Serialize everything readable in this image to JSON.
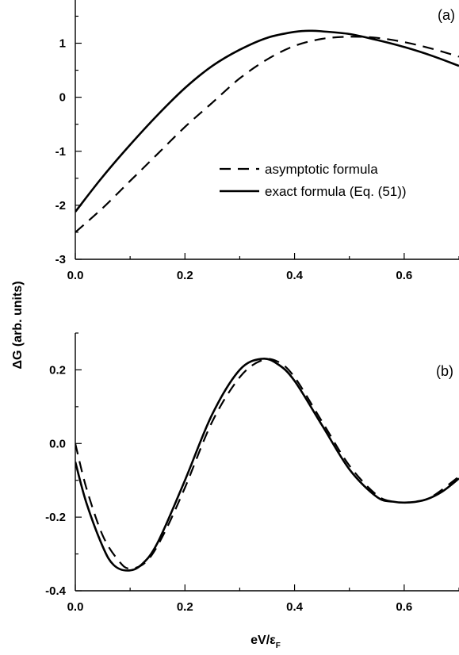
{
  "chart_data": [
    {
      "type": "line",
      "panel_label": "(a)",
      "xlim": [
        0,
        0.7
      ],
      "ylim": [
        -3,
        1.8
      ],
      "x_ticks": [
        0.0,
        0.2,
        0.4,
        0.6
      ],
      "x_tick_labels": [
        "0.0",
        "0.2",
        "0.4",
        "0.6"
      ],
      "y_ticks": [
        -3,
        -2,
        -1,
        0,
        1
      ],
      "y_tick_labels": [
        "-3",
        "-2",
        "-1",
        "0",
        "1"
      ],
      "legend": {
        "placement": "center-right",
        "entries": [
          "asymptotic formula",
          "exact formula (Eq. (51))"
        ]
      },
      "series": [
        {
          "name": "asymptotic formula",
          "style": "dashed",
          "x": [
            0.0,
            0.05,
            0.1,
            0.15,
            0.2,
            0.25,
            0.3,
            0.35,
            0.4,
            0.45,
            0.5,
            0.55,
            0.6,
            0.65,
            0.7
          ],
          "y": [
            -2.5,
            -2.05,
            -1.55,
            -1.05,
            -0.55,
            -0.1,
            0.35,
            0.7,
            0.95,
            1.08,
            1.12,
            1.1,
            1.02,
            0.9,
            0.75
          ]
        },
        {
          "name": "exact formula (Eq. (51))",
          "style": "solid",
          "x": [
            0.0,
            0.05,
            0.1,
            0.15,
            0.2,
            0.25,
            0.3,
            0.35,
            0.4,
            0.43,
            0.45,
            0.5,
            0.55,
            0.6,
            0.65,
            0.7
          ],
          "y": [
            -2.12,
            -1.47,
            -0.88,
            -0.33,
            0.17,
            0.58,
            0.88,
            1.1,
            1.21,
            1.23,
            1.22,
            1.17,
            1.06,
            0.93,
            0.77,
            0.58
          ]
        }
      ]
    },
    {
      "type": "line",
      "panel_label": "(b)",
      "xlim": [
        0,
        0.7
      ],
      "ylim": [
        -0.4,
        0.3
      ],
      "x_ticks": [
        0.0,
        0.2,
        0.4,
        0.6
      ],
      "x_tick_labels": [
        "0.0",
        "0.2",
        "0.4",
        "0.6"
      ],
      "y_ticks": [
        -0.4,
        -0.2,
        0.0,
        0.2
      ],
      "y_tick_labels": [
        "-0.4",
        "-0.2",
        "0.0",
        "0.2"
      ],
      "series": [
        {
          "name": "asymptotic formula",
          "style": "dashed",
          "x": [
            0.0,
            0.02,
            0.05,
            0.08,
            0.1,
            0.13,
            0.16,
            0.2,
            0.25,
            0.3,
            0.34,
            0.37,
            0.4,
            0.45,
            0.5,
            0.55,
            0.58,
            0.6,
            0.62,
            0.65,
            0.7
          ],
          "y": [
            0.0,
            -0.12,
            -0.25,
            -0.32,
            -0.34,
            -0.32,
            -0.25,
            -0.12,
            0.06,
            0.18,
            0.226,
            0.222,
            0.18,
            0.06,
            -0.06,
            -0.14,
            -0.158,
            -0.16,
            -0.158,
            -0.145,
            -0.09
          ]
        },
        {
          "name": "exact formula (Eq. (51))",
          "style": "solid",
          "x": [
            0.0,
            0.02,
            0.05,
            0.07,
            0.095,
            0.12,
            0.15,
            0.2,
            0.25,
            0.3,
            0.34,
            0.37,
            0.4,
            0.45,
            0.5,
            0.55,
            0.58,
            0.61,
            0.64,
            0.67,
            0.7
          ],
          "y": [
            -0.05,
            -0.16,
            -0.28,
            -0.33,
            -0.345,
            -0.33,
            -0.27,
            -0.1,
            0.08,
            0.2,
            0.23,
            0.215,
            0.17,
            0.05,
            -0.07,
            -0.145,
            -0.158,
            -0.16,
            -0.152,
            -0.13,
            -0.095
          ]
        }
      ]
    }
  ],
  "y_axis_title": "ΔG (arb. units)",
  "x_axis_title_main": "eV/ε",
  "x_axis_title_sub": "F"
}
